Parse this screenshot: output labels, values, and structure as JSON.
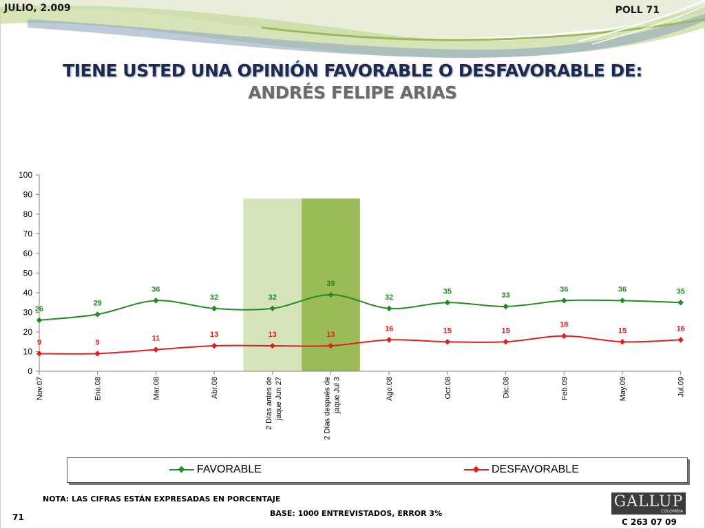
{
  "header": {
    "date": "JULIO, 2.009",
    "poll": "POLL 71",
    "title": "TIENE USTED UNA OPINIÓN FAVORABLE O DESFAVORABLE DE:",
    "subtitle": "ANDRÉS FELIPE ARIAS"
  },
  "chart_data": {
    "type": "line",
    "categories": [
      "Nov.07",
      "Ene.08",
      "Mar.08",
      "Abr.08",
      "2 Días antes de\njaque Jun 27",
      "2 Días después de\njaque Jul 3",
      "Ago.08",
      "Oct.08",
      "Dic.08",
      "Feb.09",
      "May.09",
      "Jul.09"
    ],
    "series": [
      {
        "name": "FAVORABLE",
        "values": [
          26,
          29,
          36,
          32,
          32,
          39,
          32,
          35,
          33,
          36,
          36,
          35
        ],
        "color": "#228b22"
      },
      {
        "name": "DESFAVORABLE",
        "values": [
          9,
          9,
          11,
          13,
          13,
          13,
          16,
          15,
          15,
          18,
          15,
          16
        ],
        "color": "#e01e1e"
      }
    ],
    "yticks": [
      0,
      10,
      20,
      30,
      40,
      50,
      60,
      70,
      80,
      90,
      100
    ],
    "ylim": [
      0,
      100
    ],
    "grid": false,
    "highlight_bands": [
      {
        "category_index": 4,
        "color": "#d6e4bc",
        "top_value": 88
      },
      {
        "category_index": 5,
        "color": "#9bbb59",
        "top_value": 88
      }
    ],
    "legend_position": "bottom"
  },
  "legend": {
    "favorable": "FAVORABLE",
    "desfavorable": "DESFAVORABLE"
  },
  "footer": {
    "note": "NOTA: LAS CIFRAS ESTÁN EXPRESADAS EN PORCENTAJE",
    "base": "BASE: 1000 ENTREVISTADOS, ERROR 3%",
    "slide_number": "71",
    "logo": "GALLUP",
    "logo_sub": "COLOMBIA",
    "ref_code": "C 263 07 09"
  }
}
